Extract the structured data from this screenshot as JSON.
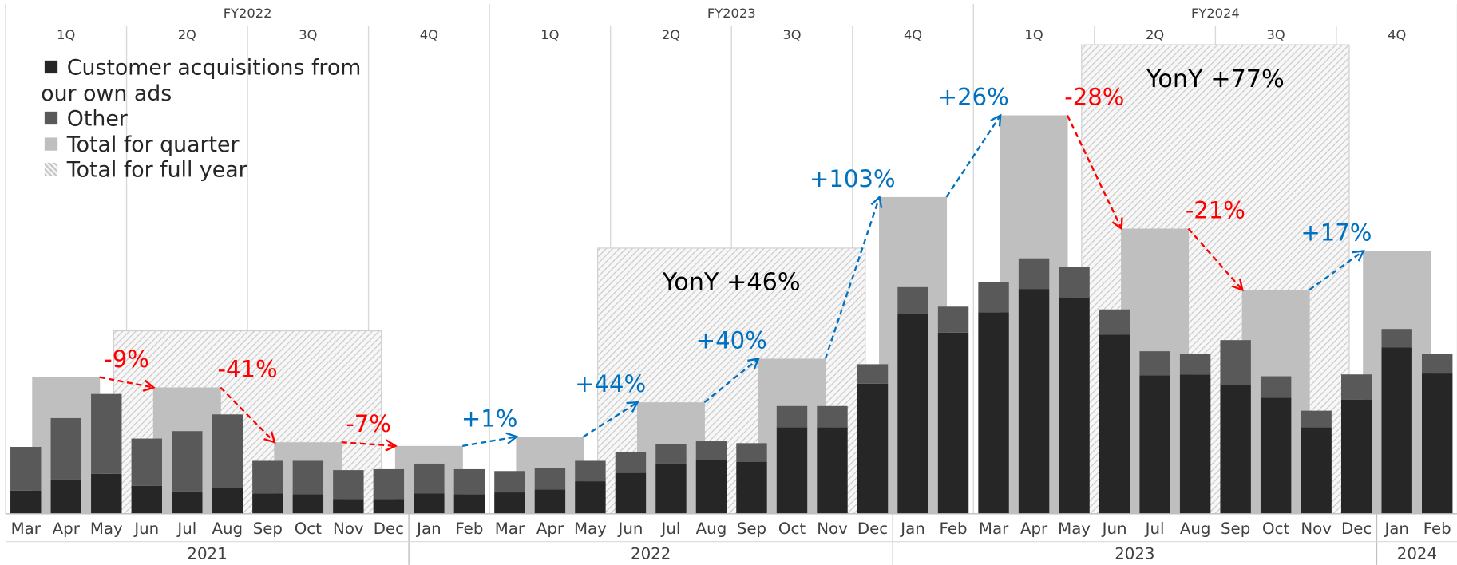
{
  "chart_data": {
    "type": "bar",
    "categories": [
      "Mar",
      "Apr",
      "May",
      "Jun",
      "Jul",
      "Aug",
      "Sep",
      "Oct",
      "Nov",
      "Dec",
      "Jan",
      "Feb",
      "Mar",
      "Apr",
      "May",
      "Jun",
      "Jul",
      "Aug",
      "Sep",
      "Oct",
      "Nov",
      "Dec",
      "Jan",
      "Feb",
      "Mar",
      "Apr",
      "May",
      "Jun",
      "Jul",
      "Aug",
      "Sep",
      "Oct",
      "Nov",
      "Dec",
      "Jan",
      "Feb"
    ],
    "series": [
      {
        "name": "Customer acquisitions from our own ads",
        "color": "#262626",
        "values": [
          25,
          37,
          43,
          30,
          24,
          28,
          22,
          21,
          16,
          16,
          22,
          21,
          23,
          26,
          35,
          44,
          54,
          58,
          56,
          93,
          93,
          140,
          215,
          195,
          217,
          242,
          233,
          193,
          149,
          150,
          139,
          125,
          93,
          123,
          179,
          151
        ]
      },
      {
        "name": "Other",
        "color": "#595959",
        "values": [
          47,
          66,
          86,
          51,
          65,
          79,
          35,
          36,
          31,
          32,
          32,
          27,
          23,
          23,
          22,
          22,
          21,
          20,
          20,
          23,
          23,
          21,
          29,
          28,
          32,
          33,
          33,
          27,
          26,
          22,
          48,
          23,
          18,
          27,
          20,
          21
        ]
      }
    ],
    "quarter_totals": {
      "name": "Total for quarter",
      "color": "#bfbfbf",
      "values": [
        147,
        136,
        77,
        73,
        83,
        120,
        167,
        341,
        429,
        307,
        241,
        283
      ]
    },
    "year_totals": {
      "name": "Total for full year",
      "color": "#c8c8c8",
      "values": [
        197,
        286,
        505
      ],
      "yoy_labels": [
        null,
        "YonY +46%",
        "YonY +77%"
      ]
    },
    "fiscal_years": [
      "FY2022",
      "FY2023",
      "FY2024"
    ],
    "quarter_labels": [
      "1Q",
      "2Q",
      "3Q",
      "4Q"
    ],
    "years": [
      {
        "label": "2021",
        "span": 10
      },
      {
        "label": "2022",
        "span": 12
      },
      {
        "label": "2023",
        "span": 12
      },
      {
        "label": "2024",
        "span": 2
      }
    ],
    "annotations": [
      {
        "text": "-9%",
        "color": "#ff0000"
      },
      {
        "text": "-41%",
        "color": "#ff0000"
      },
      {
        "text": "-7%",
        "color": "#ff0000"
      },
      {
        "text": "+1%",
        "color": "#0070c0"
      },
      {
        "text": "+44%",
        "color": "#0070c0"
      },
      {
        "text": "+40%",
        "color": "#0070c0"
      },
      {
        "text": "+103%",
        "color": "#0070c0"
      },
      {
        "text": "+26%",
        "color": "#0070c0"
      },
      {
        "text": "-28%",
        "color": "#ff0000"
      },
      {
        "text": "-21%",
        "color": "#ff0000"
      },
      {
        "text": "+17%",
        "color": "#0070c0"
      }
    ],
    "ylim": [
      0,
      520
    ]
  }
}
